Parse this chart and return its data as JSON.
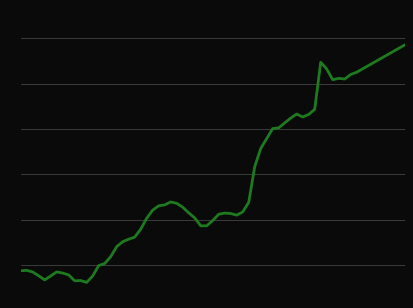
{
  "line_color": "#1e7a1e",
  "line_width": 2.0,
  "background_color": "#0a0a0a",
  "grid_color": "#444444",
  "ylim": [
    28,
    150
  ],
  "xlim": [
    1970,
    2034
  ],
  "yticks": [
    40,
    60,
    80,
    100,
    120,
    140
  ],
  "years": [
    1970,
    1971,
    1972,
    1973,
    1974,
    1975,
    1976,
    1977,
    1978,
    1979,
    1980,
    1981,
    1982,
    1983,
    1984,
    1985,
    1986,
    1987,
    1988,
    1989,
    1990,
    1991,
    1992,
    1993,
    1994,
    1995,
    1996,
    1997,
    1998,
    1999,
    2000,
    2001,
    2002,
    2003,
    2004,
    2005,
    2006,
    2007,
    2008,
    2009,
    2010,
    2011,
    2012,
    2013,
    2014,
    2015,
    2016,
    2017,
    2018,
    2019,
    2020,
    2021,
    2022,
    2023,
    2024,
    2025,
    2026,
    2027,
    2028,
    2029,
    2030,
    2031,
    2032,
    2033,
    2034
  ],
  "values": [
    37.6,
    37.8,
    37.1,
    35.4,
    33.6,
    35.3,
    37.1,
    36.6,
    35.8,
    33.2,
    33.3,
    32.5,
    35.3,
    39.9,
    40.8,
    43.8,
    48.2,
    50.4,
    51.5,
    52.4,
    55.9,
    60.7,
    64.3,
    66.2,
    66.6,
    67.9,
    67.3,
    65.6,
    63.1,
    60.9,
    57.4,
    57.4,
    59.7,
    62.5,
    63.0,
    62.8,
    62.1,
    63.5,
    67.7,
    83.4,
    91.4,
    95.8,
    100.2,
    100.5,
    102.7,
    104.8,
    106.6,
    105.3,
    106.4,
    108.7,
    129.4,
    126.4,
    121.7,
    122.3,
    122.0,
    124.0,
    125.0,
    126.5,
    128.0,
    129.5,
    131.0,
    132.5,
    134.0,
    135.5,
    137.0
  ]
}
